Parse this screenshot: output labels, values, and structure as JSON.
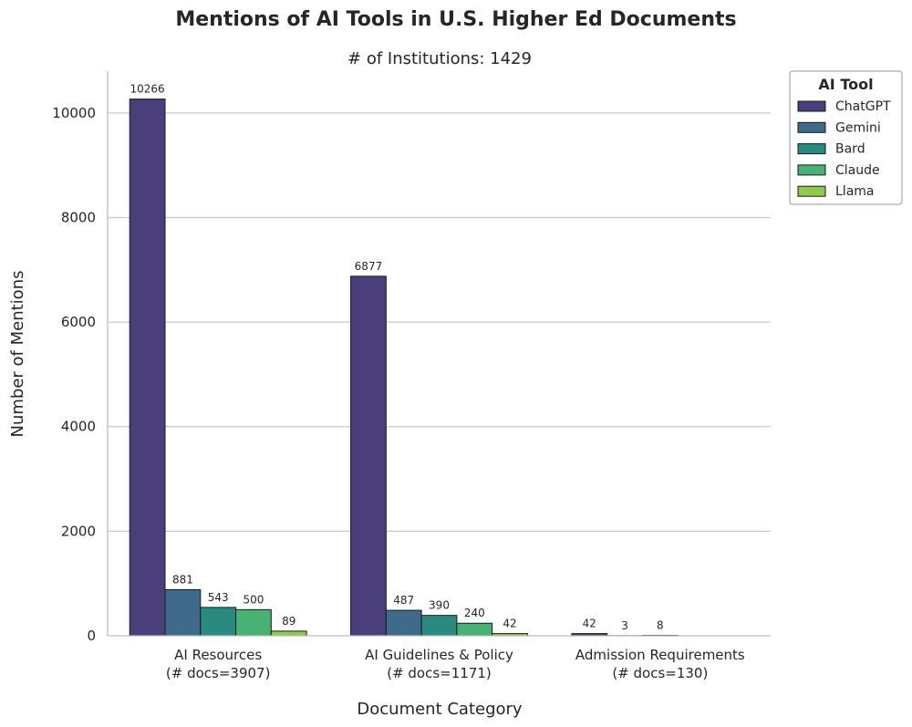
{
  "chart_data": {
    "type": "bar",
    "title": "Mentions of AI Tools in U.S. Higher Ed Documents",
    "subtitle": "# of Institutions: 1429",
    "xlabel": "Document Category",
    "ylabel": "Number of Mentions",
    "ylim": [
      0,
      10800
    ],
    "yticks": [
      0,
      2000,
      4000,
      6000,
      8000,
      10000
    ],
    "grid": "horizontal",
    "legend": {
      "title": "AI Tool",
      "placement": "outside-top-right"
    },
    "categories": [
      {
        "name": "AI Resources",
        "sub": "(# docs=3907)"
      },
      {
        "name": "AI Guidelines & Policy",
        "sub": "(# docs=1171)"
      },
      {
        "name": "Admission Requirements",
        "sub": "(# docs=130)"
      }
    ],
    "series": [
      {
        "name": "ChatGPT",
        "color": "#4a3f7a",
        "values": [
          10266,
          6877,
          42
        ]
      },
      {
        "name": "Gemini",
        "color": "#3e6a8c",
        "values": [
          881,
          487,
          3
        ]
      },
      {
        "name": "Bard",
        "color": "#2a8a80",
        "values": [
          543,
          390,
          8
        ]
      },
      {
        "name": "Claude",
        "color": "#47b273",
        "values": [
          500,
          240,
          0
        ]
      },
      {
        "name": "Llama",
        "color": "#8dcb4f",
        "values": [
          89,
          42,
          0
        ]
      }
    ]
  }
}
